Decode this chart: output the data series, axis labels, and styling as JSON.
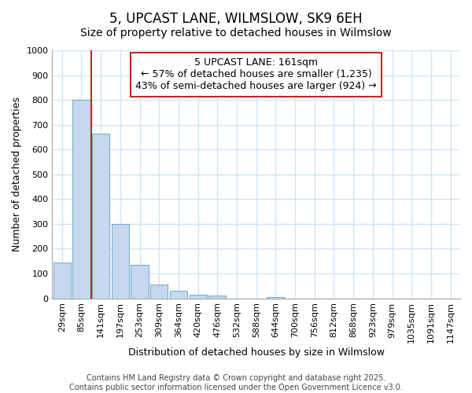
{
  "title": "5, UPCAST LANE, WILMSLOW, SK9 6EH",
  "subtitle": "Size of property relative to detached houses in Wilmslow",
  "xlabel": "Distribution of detached houses by size in Wilmslow",
  "ylabel": "Number of detached properties",
  "bar_labels": [
    "29sqm",
    "85sqm",
    "141sqm",
    "197sqm",
    "253sqm",
    "309sqm",
    "364sqm",
    "420sqm",
    "476sqm",
    "532sqm",
    "588sqm",
    "644sqm",
    "700sqm",
    "756sqm",
    "812sqm",
    "868sqm",
    "923sqm",
    "979sqm",
    "1035sqm",
    "1091sqm",
    "1147sqm"
  ],
  "bar_values": [
    145,
    800,
    665,
    300,
    135,
    55,
    30,
    15,
    10,
    0,
    0,
    5,
    0,
    0,
    0,
    0,
    0,
    0,
    0,
    0,
    0
  ],
  "highlight_color": "#cc2222",
  "bar_color": "#c5d8f0",
  "bar_edge_color": "#7bafd4",
  "annotation_box_text": "5 UPCAST LANE: 161sqm\n← 57% of detached houses are smaller (1,235)\n43% of semi-detached houses are larger (924) →",
  "ylim": [
    0,
    1000
  ],
  "yticks": [
    0,
    100,
    200,
    300,
    400,
    500,
    600,
    700,
    800,
    900,
    1000
  ],
  "footer_line1": "Contains HM Land Registry data © Crown copyright and database right 2025.",
  "footer_line2": "Contains public sector information licensed under the Open Government Licence v3.0.",
  "bg_color": "#ffffff",
  "grid_color": "#d0e4f7",
  "vertical_line_x": 1.5,
  "title_fontsize": 12,
  "subtitle_fontsize": 10,
  "axis_label_fontsize": 9,
  "tick_fontsize": 8,
  "footer_fontsize": 7,
  "annotation_fontsize": 9
}
